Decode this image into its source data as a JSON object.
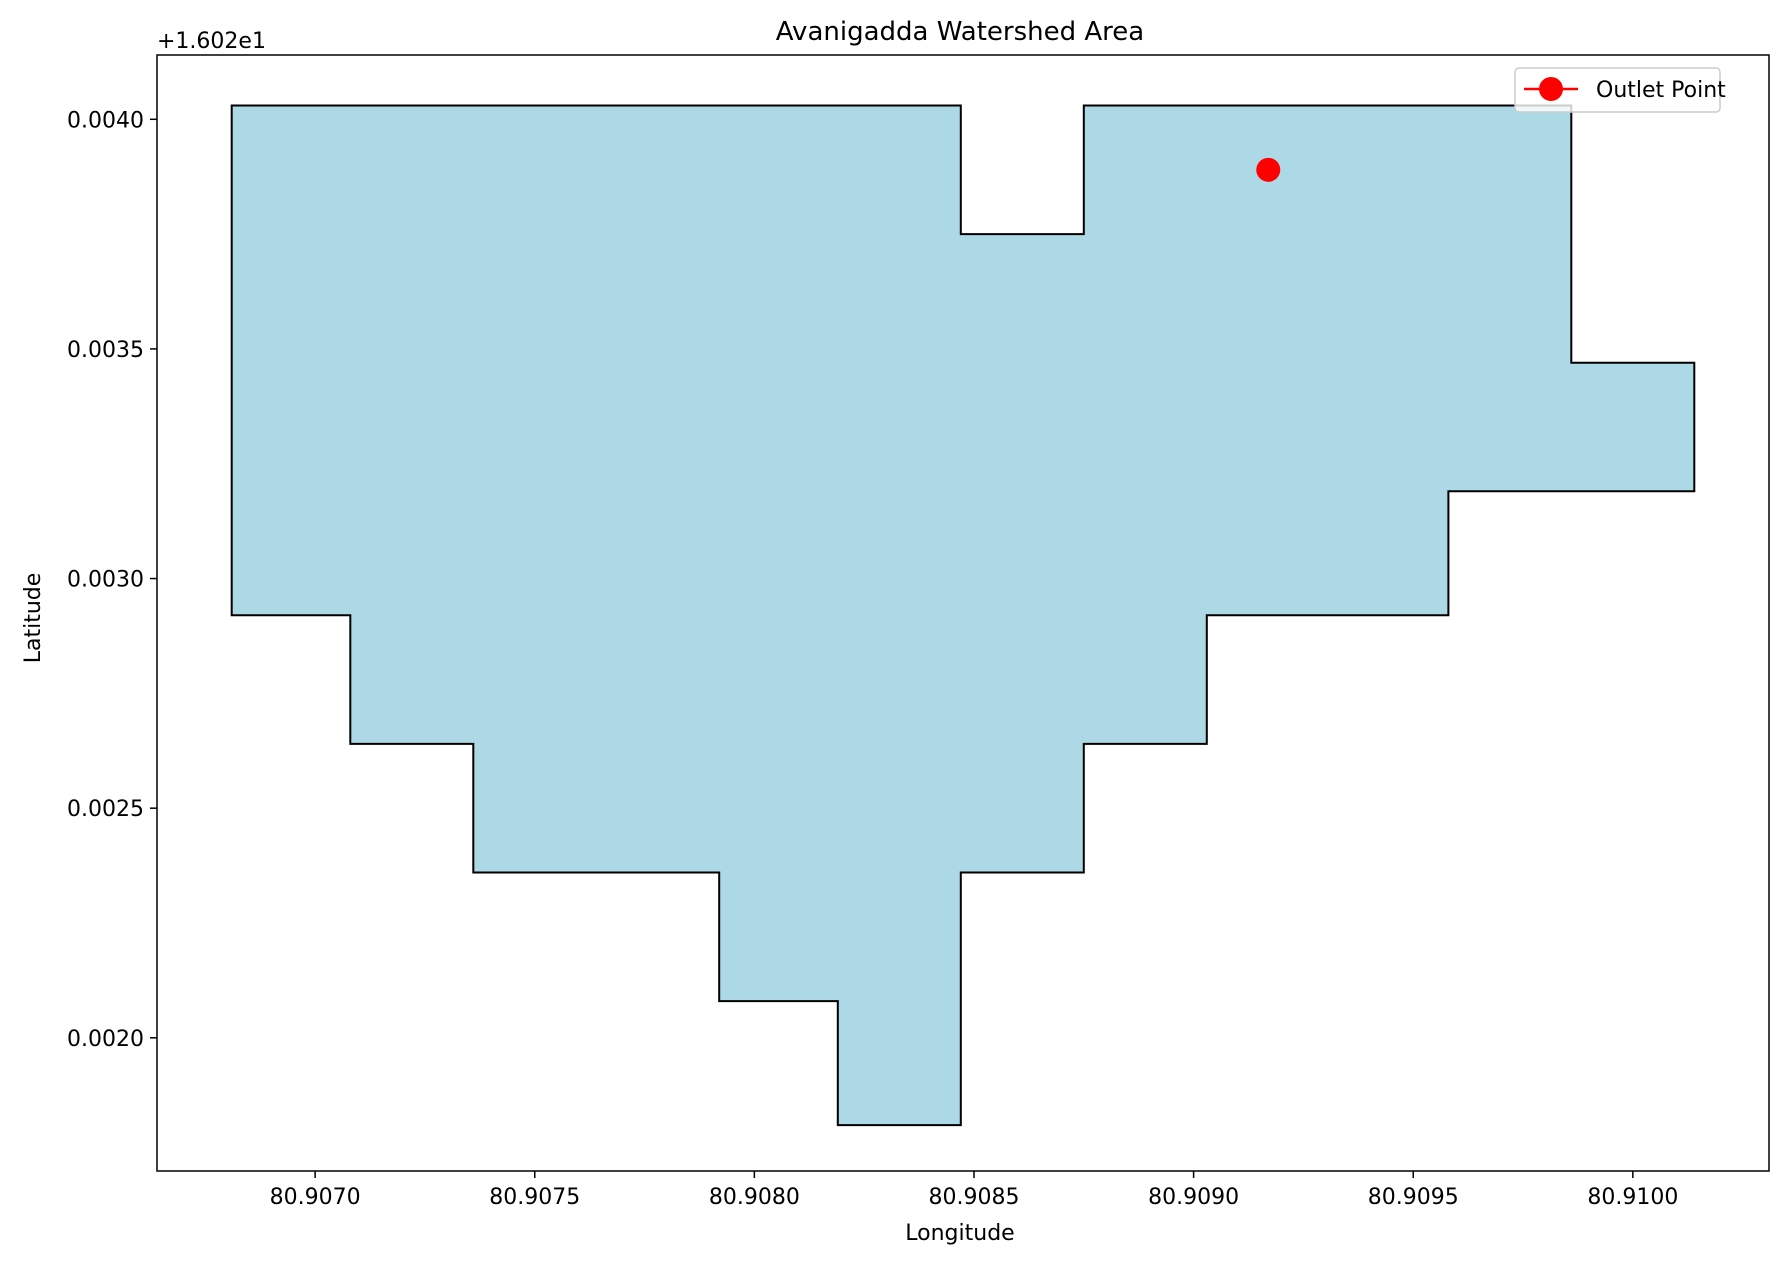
{
  "chart_data": {
    "type": "area",
    "title": "Avanigadda Watershed Area",
    "xlabel": "Longitude",
    "ylabel": "Latitude",
    "y_offset_label": "+1.602e1",
    "xlim": [
      80.90664,
      80.91031
    ],
    "ylim": [
      0.00171,
      0.00414
    ],
    "x_ticks": [
      80.907,
      80.9075,
      80.908,
      80.9085,
      80.909,
      80.9095,
      80.91
    ],
    "x_tick_labels": [
      "80.9070",
      "80.9075",
      "80.9080",
      "80.9085",
      "80.9090",
      "80.9095",
      "80.9100"
    ],
    "y_ticks": [
      0.002,
      0.0025,
      0.003,
      0.0035,
      0.004
    ],
    "y_tick_labels": [
      "0.0020",
      "0.0025",
      "0.0030",
      "0.0035",
      "0.0040"
    ],
    "grid": false,
    "legend_position": "top-right",
    "series": [
      {
        "kind": "polygon",
        "fill": "#add8e6",
        "edge": "#000000",
        "points": [
          [
            80.90681,
            0.00403
          ],
          [
            80.90847,
            0.00403
          ],
          [
            80.90847,
            0.00375
          ],
          [
            80.90875,
            0.00375
          ],
          [
            80.90875,
            0.00403
          ],
          [
            80.90986,
            0.00403
          ],
          [
            80.90986,
            0.00347
          ],
          [
            80.91014,
            0.00347
          ],
          [
            80.91014,
            0.00319
          ],
          [
            80.90958,
            0.00319
          ],
          [
            80.90958,
            0.00292
          ],
          [
            80.90903,
            0.00292
          ],
          [
            80.90903,
            0.00264
          ],
          [
            80.90875,
            0.00264
          ],
          [
            80.90875,
            0.00236
          ],
          [
            80.90847,
            0.00236
          ],
          [
            80.90847,
            0.00181
          ],
          [
            80.90819,
            0.00181
          ],
          [
            80.90819,
            0.00208
          ],
          [
            80.90792,
            0.00208
          ],
          [
            80.90792,
            0.00236
          ],
          [
            80.90736,
            0.00236
          ],
          [
            80.90736,
            0.00264
          ],
          [
            80.90708,
            0.00264
          ],
          [
            80.90708,
            0.00292
          ],
          [
            80.90681,
            0.00292
          ]
        ]
      },
      {
        "kind": "point",
        "name": "Outlet Point",
        "color": "#ff0000",
        "x": 80.90917,
        "y": 0.00389
      }
    ]
  }
}
